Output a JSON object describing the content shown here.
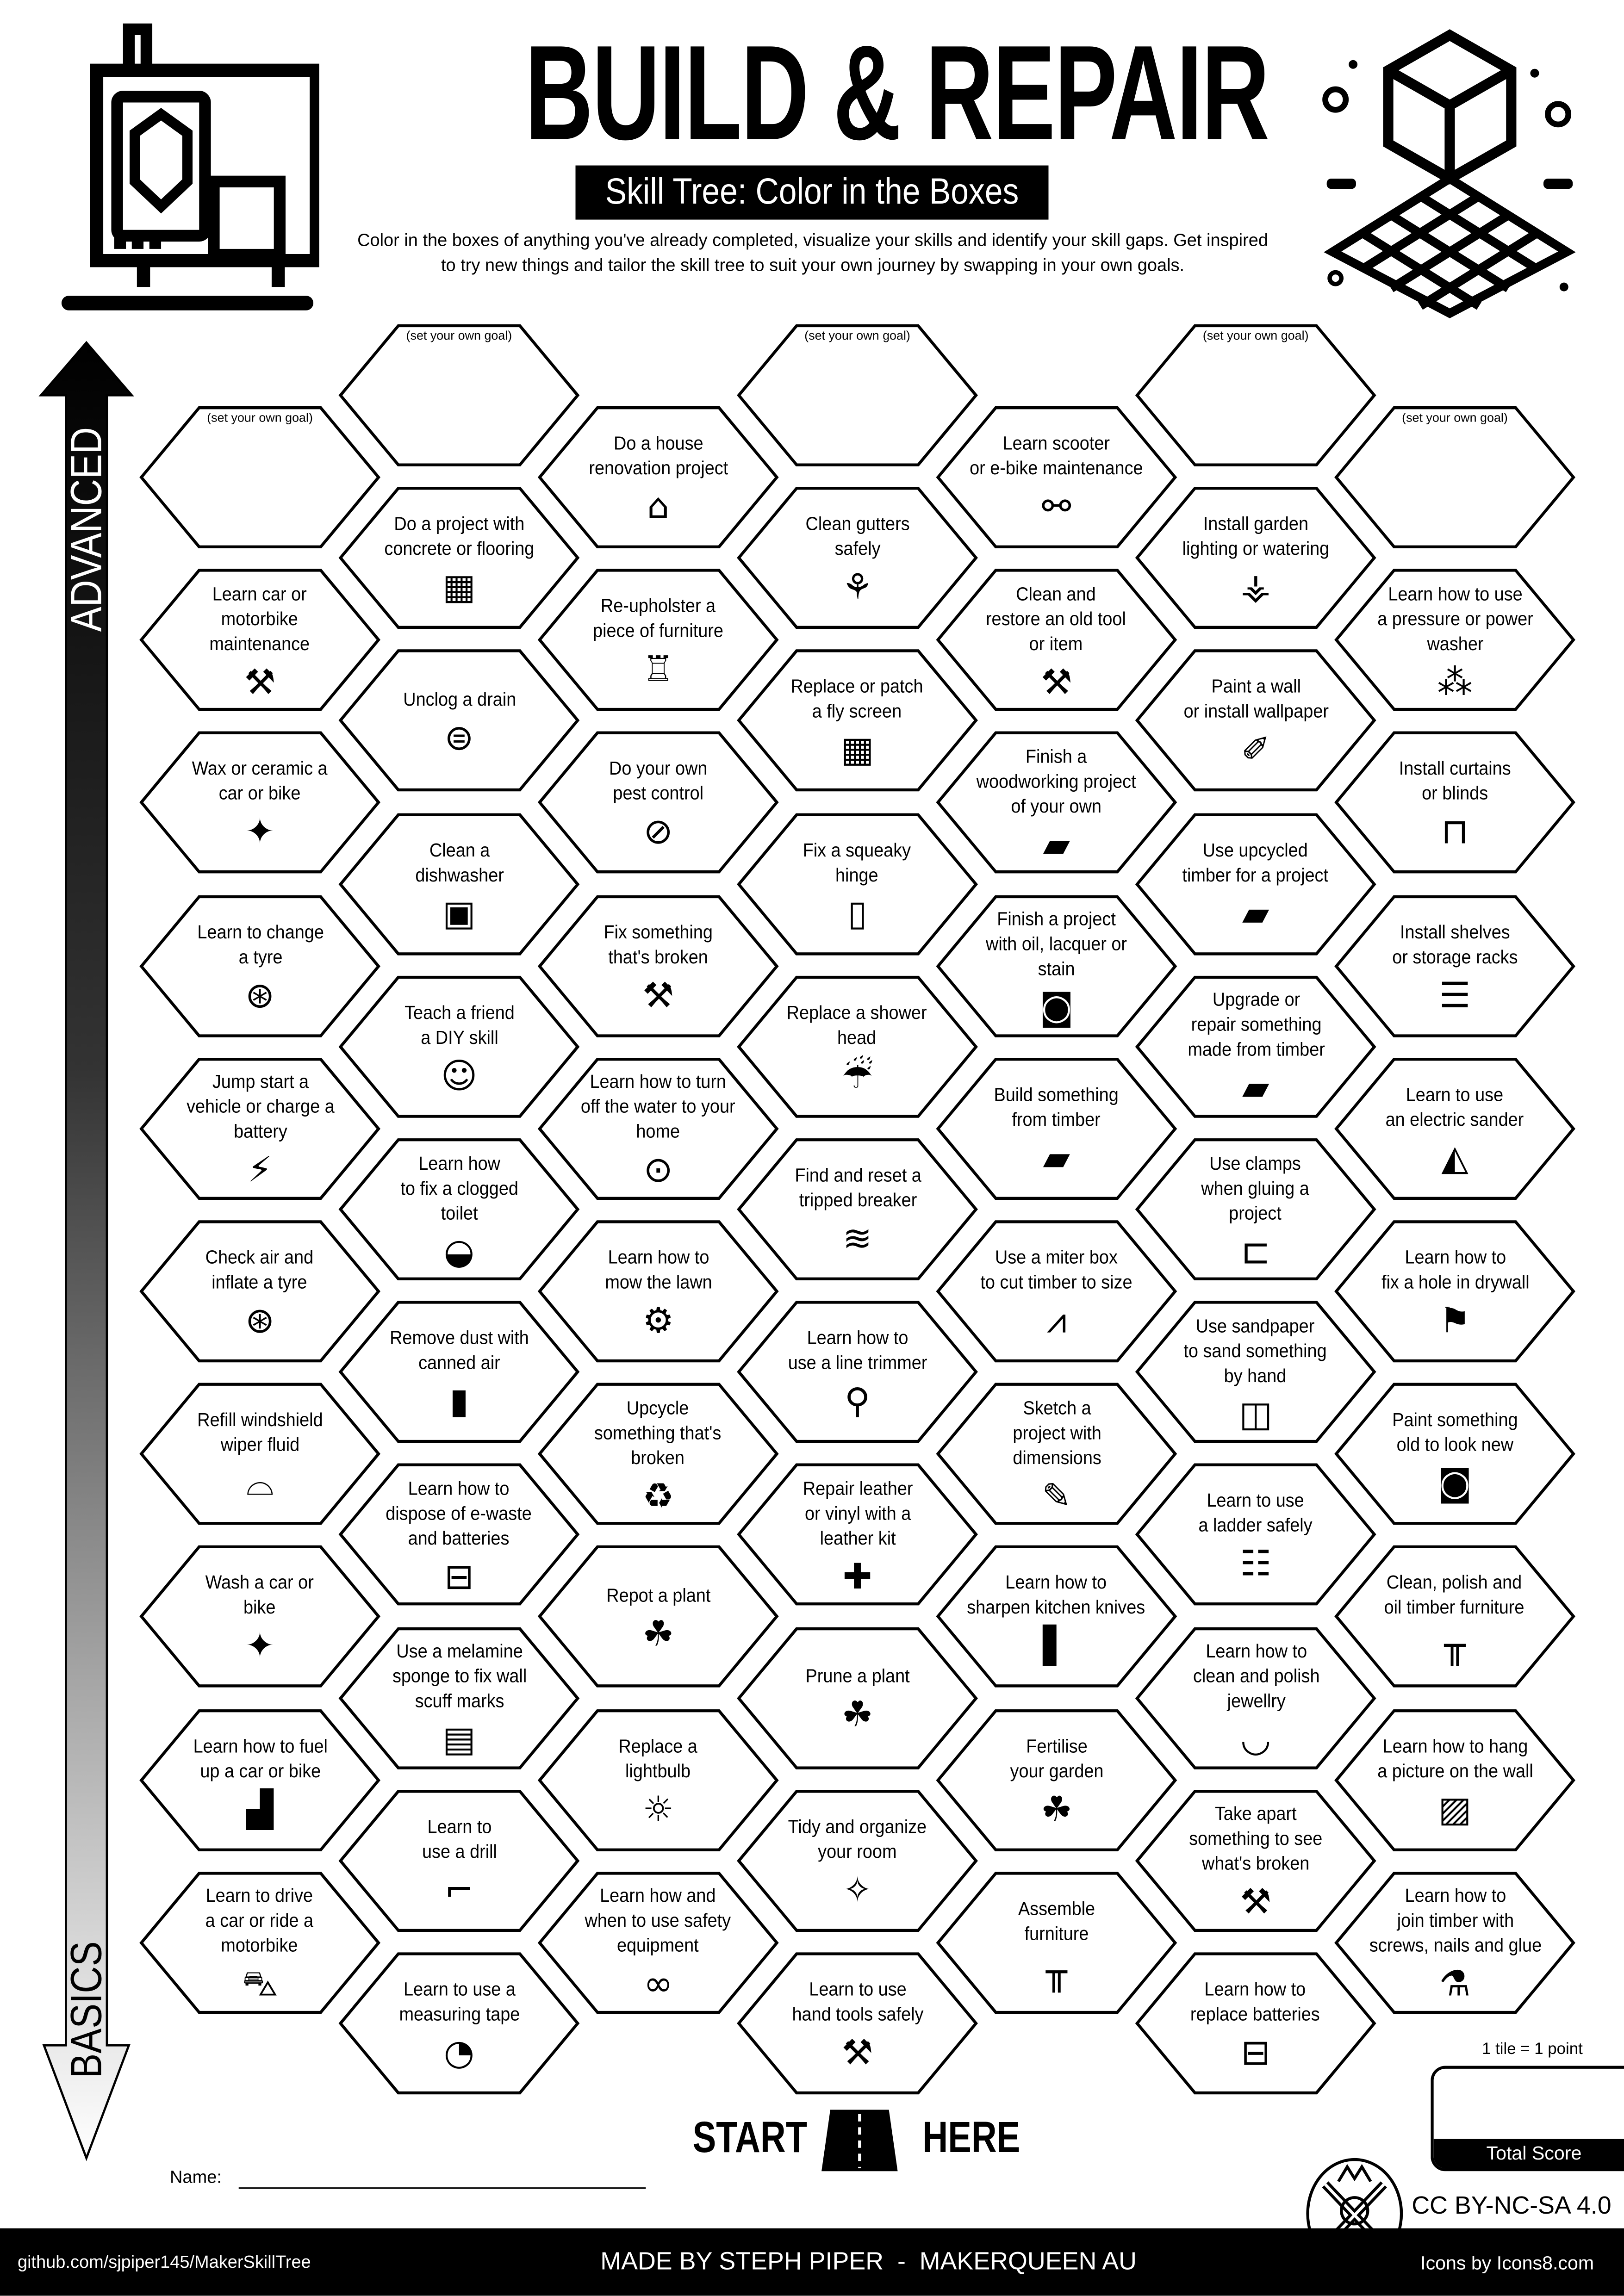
{
  "header": {
    "title": "BUILD & REPAIR",
    "subtitle": "Skill Tree: Color in the Boxes",
    "description_line1": "Color in the boxes of anything you've already completed, visualize your skills and identify your skill gaps.  Get inspired",
    "description_line2": "to try new things and tailor the skill tree to suit your own journey by swapping in your own goals.",
    "left_icon": "3d-printer-icon",
    "right_icon": "cube-grid-icon"
  },
  "axis": {
    "top_label": "ADVANCED",
    "bottom_label": "BASICS"
  },
  "goal_text": "(set your own goal)",
  "columns": [
    [
      {
        "goal": true
      },
      {
        "text": "Learn car or\nmotorbike\nmaintenance",
        "icon": "wrench-screwdriver"
      },
      {
        "text": "Wax or ceramic a\ncar or bike",
        "icon": "shiny-car"
      },
      {
        "text": "Learn to change\na tyre",
        "icon": "tyre"
      },
      {
        "text": "Jump start a\nvehicle or charge a\nbattery",
        "icon": "jumper-cables"
      },
      {
        "text": "Check air and\ninflate a tyre",
        "icon": "tyre"
      },
      {
        "text": "Refill windshield\nwiper fluid",
        "icon": "windshield"
      },
      {
        "text": "Wash a car or\nbike",
        "icon": "shiny-car"
      },
      {
        "text": "Learn how to fuel\nup a car or bike",
        "icon": "fuel-pump"
      },
      {
        "text": "Learn to drive\na car or ride a\nmotorbike",
        "icon": "car"
      }
    ],
    [
      {
        "goal": true
      },
      {
        "text": "Do a project with\nconcrete or flooring",
        "icon": "flooring"
      },
      {
        "text": "Unclog a drain",
        "icon": "drain"
      },
      {
        "text": "Clean a\ndishwasher",
        "icon": "dishwasher"
      },
      {
        "text": "Teach a friend\na DIY skill",
        "icon": "teaching"
      },
      {
        "text": "Learn how\nto fix a clogged\ntoilet",
        "icon": "toilet"
      },
      {
        "text": "Remove dust with\ncanned air",
        "icon": "spray-can"
      },
      {
        "text": "Learn how to\ndispose of e-waste\nand batteries",
        "icon": "battery"
      },
      {
        "text": "Use a melamine\nsponge to fix wall\nscuff marks",
        "icon": "sponge"
      },
      {
        "text": "Learn to\nuse a drill",
        "icon": "drill"
      },
      {
        "text": "Learn to use a\nmeasuring tape",
        "icon": "tape-measure"
      }
    ],
    [
      {
        "text": "Do a house\nrenovation project",
        "icon": "house"
      },
      {
        "text": "Re-upholster a\npiece of furniture",
        "icon": "chair"
      },
      {
        "text": "Do your own\npest control",
        "icon": "no-bugs"
      },
      {
        "text": "Fix something\nthat's broken",
        "icon": "wrench-screwdriver"
      },
      {
        "text": "Learn how to turn\noff the water to your\nhome",
        "icon": "water-meter"
      },
      {
        "text": "Learn how to\nmow the lawn",
        "icon": "lawn-mower"
      },
      {
        "text": "Upcycle\nsomething that's\nbroken",
        "icon": "recycle"
      },
      {
        "text": "Repot a plant",
        "icon": "plant"
      },
      {
        "text": "Replace a\nlightbulb",
        "icon": "lightbulb"
      },
      {
        "text": "Learn how and\nwhen to use safety\nequipment",
        "icon": "safety-glasses"
      }
    ],
    [
      {
        "goal": true
      },
      {
        "text": "Clean gutters\nsafely",
        "icon": "broom"
      },
      {
        "text": "Replace or patch\na fly screen",
        "icon": "mesh-screen"
      },
      {
        "text": "Fix a squeaky\nhinge",
        "icon": "door"
      },
      {
        "text": "Replace a shower\nhead",
        "icon": "shower"
      },
      {
        "text": "Find and reset a\ntripped breaker",
        "icon": "wires"
      },
      {
        "text": "Learn how to\nuse a line trimmer",
        "icon": "line-trimmer"
      },
      {
        "text": "Repair leather\nor vinyl with a\nleather kit",
        "icon": "patch"
      },
      {
        "text": "Prune a plant",
        "icon": "plant"
      },
      {
        "text": "Tidy and organize\nyour room",
        "icon": "cleaning-hands"
      },
      {
        "text": "Learn to use\nhand tools safely",
        "icon": "wrench-screwdriver"
      }
    ],
    [
      {
        "text": "Learn scooter\nor e-bike maintenance",
        "icon": "scooter"
      },
      {
        "text": "Clean and\nrestore an old tool\nor item",
        "icon": "wrench-screwdriver"
      },
      {
        "text": "Finish a\nwoodworking project\nof your own",
        "icon": "timber"
      },
      {
        "text": "Finish a project\nwith oil, lacquer or\nstain",
        "icon": "paint-can"
      },
      {
        "text": "Build something\nfrom timber",
        "icon": "timber"
      },
      {
        "text": "Use a miter box\nto cut timber to size",
        "icon": "saw"
      },
      {
        "text": "Sketch a\nproject with\ndimensions",
        "icon": "pencil"
      },
      {
        "text": "Learn how to\nsharpen kitchen knives",
        "icon": "knife-board"
      },
      {
        "text": "Fertilise\nyour garden",
        "icon": "plant"
      },
      {
        "text": "Assemble\nfurniture",
        "icon": "table"
      }
    ],
    [
      {
        "goal": true
      },
      {
        "text": "Install garden\nlighting or watering",
        "icon": "garden-lighting"
      },
      {
        "text": "Paint a wall\nor install wallpaper",
        "icon": "paint-brush"
      },
      {
        "text": "Use upcycled\ntimber for a project",
        "icon": "timber"
      },
      {
        "text": "Upgrade or\nrepair something\nmade from timber",
        "icon": "timber"
      },
      {
        "text": "Use clamps\nwhen gluing a\nproject",
        "icon": "clamp"
      },
      {
        "text": "Use sandpaper\nto sand something\nby hand",
        "icon": "sandpaper"
      },
      {
        "text": "Learn to use\na ladder safely",
        "icon": "ladder"
      },
      {
        "text": "Learn how to\nclean and polish\njewellry",
        "icon": "necklace"
      },
      {
        "text": "Take apart\nsomething to see\nwhat's broken",
        "icon": "wrench-screwdriver"
      },
      {
        "text": "Learn how to\nreplace batteries",
        "icon": "battery"
      }
    ],
    [
      {
        "goal": true
      },
      {
        "text": "Learn how to use\na pressure or power\nwasher",
        "icon": "spray-nozzle"
      },
      {
        "text": "Install curtains\nor blinds",
        "icon": "curtains"
      },
      {
        "text": "Install shelves\nor storage racks",
        "icon": "shelves"
      },
      {
        "text": "Learn to use\nan electric sander",
        "icon": "sander"
      },
      {
        "text": "Learn how to\nfix a hole in drywall",
        "icon": "plasterer"
      },
      {
        "text": "Paint something\nold to look new",
        "icon": "paint-can"
      },
      {
        "text": "Clean, polish and\noil timber furniture",
        "icon": "table"
      },
      {
        "text": "Learn how to hang\na picture on the wall",
        "icon": "picture"
      },
      {
        "text": "Learn how to\njoin timber with\nscrews, nails and glue",
        "icon": "glue"
      }
    ]
  ],
  "start": {
    "left": "START",
    "right": "HERE",
    "icon": "road-icon"
  },
  "name_label": "Name:",
  "score": {
    "note": "1 tile = 1 point",
    "label": "Total Score"
  },
  "license": "CC BY-NC-SA 4.0",
  "footer": {
    "left": "github.com/sjpiper145/MakerSkillTree",
    "center": "MADE BY STEPH PIPER  -  MAKERQUEEN AU",
    "right": "Icons by Icons8.com",
    "logo": "makerqueen-logo"
  }
}
